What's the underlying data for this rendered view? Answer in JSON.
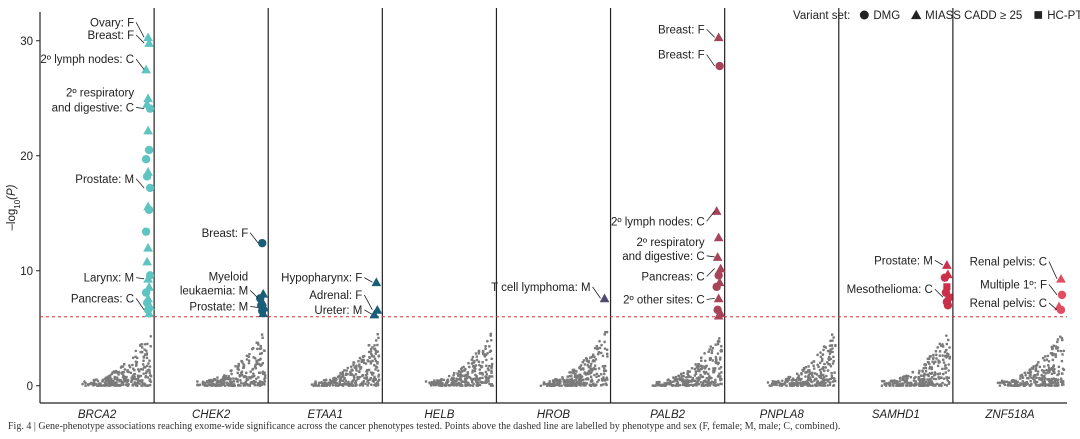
{
  "chart_data": {
    "type": "scatter",
    "ylabel_parts": [
      "–log",
      "10",
      "(P)"
    ],
    "ylim": [
      -1.5,
      32.5
    ],
    "yticks": [
      0,
      10,
      20,
      30
    ],
    "significance_threshold": 6,
    "legend": {
      "title": "Variant set:",
      "entries": [
        {
          "shape": "circle",
          "label": "DMG"
        },
        {
          "shape": "triangle",
          "label": "MIASS CADD ≥ 25"
        },
        {
          "shape": "square",
          "label": "HC-PTVs"
        }
      ]
    },
    "genes": [
      {
        "name": "BRCA2",
        "color": "#5ec4c1",
        "points": [
          {
            "y": 30.3,
            "shape": "triangle"
          },
          {
            "y": 29.8,
            "shape": "triangle"
          },
          {
            "y": 27.5,
            "shape": "triangle"
          },
          {
            "y": 25.0,
            "shape": "triangle"
          },
          {
            "y": 24.5,
            "shape": "triangle"
          },
          {
            "y": 24.1,
            "shape": "circle"
          },
          {
            "y": 22.2,
            "shape": "triangle"
          },
          {
            "y": 20.5,
            "shape": "circle"
          },
          {
            "y": 19.7,
            "shape": "circle"
          },
          {
            "y": 18.6,
            "shape": "triangle"
          },
          {
            "y": 18.2,
            "shape": "circle"
          },
          {
            "y": 17.2,
            "shape": "circle"
          },
          {
            "y": 15.6,
            "shape": "triangle"
          },
          {
            "y": 15.3,
            "shape": "circle"
          },
          {
            "y": 13.4,
            "shape": "circle"
          },
          {
            "y": 12.0,
            "shape": "triangle"
          },
          {
            "y": 10.8,
            "shape": "triangle"
          },
          {
            "y": 9.6,
            "shape": "circle"
          },
          {
            "y": 9.3,
            "shape": "triangle"
          },
          {
            "y": 8.6,
            "shape": "triangle"
          },
          {
            "y": 8.1,
            "shape": "circle"
          },
          {
            "y": 7.6,
            "shape": "triangle"
          },
          {
            "y": 7.2,
            "shape": "circle"
          },
          {
            "y": 6.9,
            "shape": "triangle"
          },
          {
            "y": 6.6,
            "shape": "circle"
          },
          {
            "y": 6.3,
            "shape": "triangle"
          }
        ],
        "labels": [
          {
            "text": "Ovary: F",
            "y": 31.6,
            "target_y": 30.3
          },
          {
            "text": "Breast: F",
            "y": 30.5,
            "target_y": 29.8
          },
          {
            "text": "2º lymph nodes: C",
            "y": 28.4,
            "target_y": 27.5
          },
          {
            "text": "2º respiratory",
            "y": 25.5
          },
          {
            "text": "and digestive: C",
            "y": 24.2,
            "target_y": 24.1
          },
          {
            "text": "Prostate: M",
            "y": 18.0,
            "target_y": 17.2
          },
          {
            "text": "Larynx: M",
            "y": 9.4,
            "target_y": 9.3
          },
          {
            "text": "Pancreas: C",
            "y": 7.6,
            "target_y": 6.6
          }
        ]
      },
      {
        "name": "CHEK2",
        "color": "#1a5e7a",
        "points": [
          {
            "y": 12.4,
            "shape": "circle"
          },
          {
            "y": 8.0,
            "shape": "triangle"
          },
          {
            "y": 7.6,
            "shape": "circle"
          },
          {
            "y": 7.3,
            "shape": "triangle"
          },
          {
            "y": 7.0,
            "shape": "circle"
          },
          {
            "y": 6.8,
            "shape": "triangle"
          },
          {
            "y": 6.5,
            "shape": "circle"
          },
          {
            "y": 6.3,
            "shape": "triangle"
          }
        ],
        "labels": [
          {
            "text": "Breast: F",
            "y": 13.3,
            "target_y": 12.4
          },
          {
            "text": "Myeloid",
            "y": 9.5
          },
          {
            "text": "leukaemia: M",
            "y": 8.3,
            "target_y": 7.6
          },
          {
            "text": "Prostate: M",
            "y": 6.9,
            "target_y": 6.8
          }
        ]
      },
      {
        "name": "ETAA1",
        "color": "#1a5e7a",
        "points": [
          {
            "y": 9.0,
            "shape": "triangle"
          },
          {
            "y": 6.6,
            "shape": "triangle"
          },
          {
            "y": 6.2,
            "shape": "triangle"
          }
        ],
        "labels": [
          {
            "text": "Hypopharynx: F",
            "y": 9.4,
            "target_y": 9.0
          },
          {
            "text": "Adrenal: F",
            "y": 7.9,
            "target_y": 6.6
          },
          {
            "text": "Ureter: M",
            "y": 6.6,
            "target_y": 6.2
          }
        ]
      },
      {
        "name": "HELB",
        "color": "#1a5e7a",
        "points": [],
        "labels": []
      },
      {
        "name": "HROB",
        "color": "#4e4a6e",
        "points": [
          {
            "y": 7.6,
            "shape": "triangle"
          }
        ],
        "labels": [
          {
            "text": "T cell lymphoma: M",
            "y": 8.6,
            "target_y": 7.6
          }
        ]
      },
      {
        "name": "PALB2",
        "color": "#a8445a",
        "points": [
          {
            "y": 30.3,
            "shape": "triangle"
          },
          {
            "y": 27.8,
            "shape": "circle"
          },
          {
            "y": 15.2,
            "shape": "triangle"
          },
          {
            "y": 12.9,
            "shape": "triangle"
          },
          {
            "y": 11.2,
            "shape": "triangle"
          },
          {
            "y": 10.2,
            "shape": "triangle"
          },
          {
            "y": 9.6,
            "shape": "circle"
          },
          {
            "y": 9.0,
            "shape": "triangle"
          },
          {
            "y": 8.6,
            "shape": "circle"
          },
          {
            "y": 7.6,
            "shape": "triangle"
          },
          {
            "y": 6.6,
            "shape": "circle"
          },
          {
            "y": 6.3,
            "shape": "triangle"
          },
          {
            "y": 6.1,
            "shape": "triangle"
          }
        ],
        "labels": [
          {
            "text": "Breast: F",
            "y": 31.0,
            "target_y": 30.3
          },
          {
            "text": "Breast: F",
            "y": 28.8,
            "target_y": 27.8
          },
          {
            "text": "2º lymph nodes: C",
            "y": 14.3,
            "target_y": 15.2
          },
          {
            "text": "2º respiratory",
            "y": 12.5
          },
          {
            "text": "and digestive: C",
            "y": 11.3,
            "target_y": 11.2
          },
          {
            "text": "Pancreas: C",
            "y": 9.5,
            "target_y": 10.2
          },
          {
            "text": "2º other sites: C",
            "y": 7.5,
            "target_y": 7.6
          }
        ]
      },
      {
        "name": "PNPLA8",
        "color": "#a8445a",
        "points": [],
        "labels": []
      },
      {
        "name": "SAMHD1",
        "color": "#cc2f4a",
        "points": [
          {
            "y": 10.5,
            "shape": "triangle"
          },
          {
            "y": 9.7,
            "shape": "triangle"
          },
          {
            "y": 9.4,
            "shape": "circle"
          },
          {
            "y": 8.6,
            "shape": "square"
          },
          {
            "y": 8.1,
            "shape": "circle"
          },
          {
            "y": 7.7,
            "shape": "square"
          },
          {
            "y": 7.3,
            "shape": "circle"
          },
          {
            "y": 7.0,
            "shape": "circle"
          }
        ],
        "labels": [
          {
            "text": "Prostate: M",
            "y": 10.9,
            "target_y": 10.5
          },
          {
            "text": "Mesothelioma: C",
            "y": 8.4,
            "target_y": 7.7
          }
        ]
      },
      {
        "name": "ZNF518A",
        "color": "#e34d62",
        "points": [
          {
            "y": 9.3,
            "shape": "triangle"
          },
          {
            "y": 7.9,
            "shape": "circle"
          },
          {
            "y": 6.9,
            "shape": "triangle"
          },
          {
            "y": 6.6,
            "shape": "circle"
          }
        ],
        "labels": [
          {
            "text": "Renal pelvis: C",
            "y": 10.8,
            "target_y": 9.3
          },
          {
            "text": "Multiple 1º: F",
            "y": 8.8,
            "target_y": 7.9
          },
          {
            "text": "Renal pelvis: C",
            "y": 7.2,
            "target_y": 6.6
          }
        ]
      }
    ]
  },
  "caption": "Fig. 4 | Gene-phenotype associations reaching exome-wide significance across the cancer phenotypes tested. Points above the dashed line are labelled by phenotype and sex (F, female; M, male; C, combined)."
}
